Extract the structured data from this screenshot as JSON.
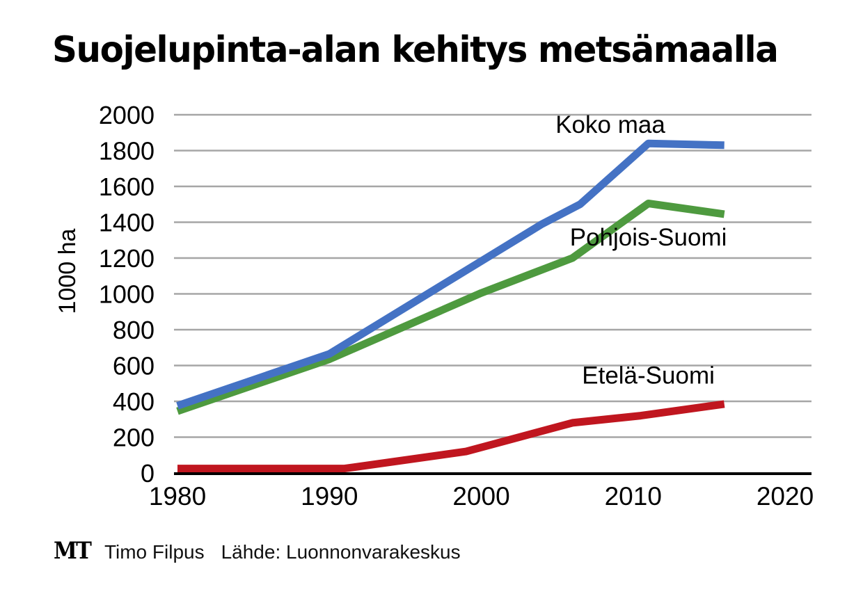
{
  "title": "Suojelupinta-alan kehitys metsämaalla",
  "footer": {
    "logo": "MT",
    "author": "Timo Filpus",
    "source": "Lähde: Luonnonvarakeskus"
  },
  "chart_data": {
    "type": "line",
    "title": "Suojelupinta-alan kehitys metsämaalla",
    "xlabel": "",
    "ylabel": "1000 ha",
    "xlim": [
      1980,
      2020
    ],
    "ylim": [
      0,
      2000
    ],
    "x_ticks": [
      1980,
      1990,
      2000,
      2010,
      2020
    ],
    "y_ticks": [
      0,
      200,
      400,
      600,
      800,
      1000,
      1200,
      1400,
      1600,
      1800,
      2000
    ],
    "grid": "horizontal",
    "legend": "inline labels",
    "series": [
      {
        "name": "Koko maa",
        "color": "#4472c4",
        "points": [
          [
            1980,
            375
          ],
          [
            1990,
            665
          ],
          [
            2004,
            1390
          ],
          [
            2006.5,
            1500
          ],
          [
            2011,
            1840
          ],
          [
            2016,
            1830
          ]
        ]
      },
      {
        "name": "Pohjois-Suomi",
        "color": "#4e9a3f",
        "points": [
          [
            1980,
            345
          ],
          [
            1990,
            635
          ],
          [
            2000,
            1005
          ],
          [
            2006,
            1200
          ],
          [
            2011,
            1505
          ],
          [
            2016,
            1445
          ]
        ]
      },
      {
        "name": "Etelä-Suomi",
        "color": "#c0161f",
        "points": [
          [
            1980,
            25
          ],
          [
            1991,
            25
          ],
          [
            1999,
            120
          ],
          [
            2006,
            280
          ],
          [
            2010.5,
            320
          ],
          [
            2016,
            385
          ]
        ]
      }
    ],
    "annotations": [
      {
        "text": "Koko maa",
        "x": 2008.5,
        "y": 1900
      },
      {
        "text": "Pohjois-Suomi",
        "x": 2011,
        "y": 1270
      },
      {
        "text": "Etelä-Suomi",
        "x": 2011,
        "y": 500
      }
    ]
  }
}
